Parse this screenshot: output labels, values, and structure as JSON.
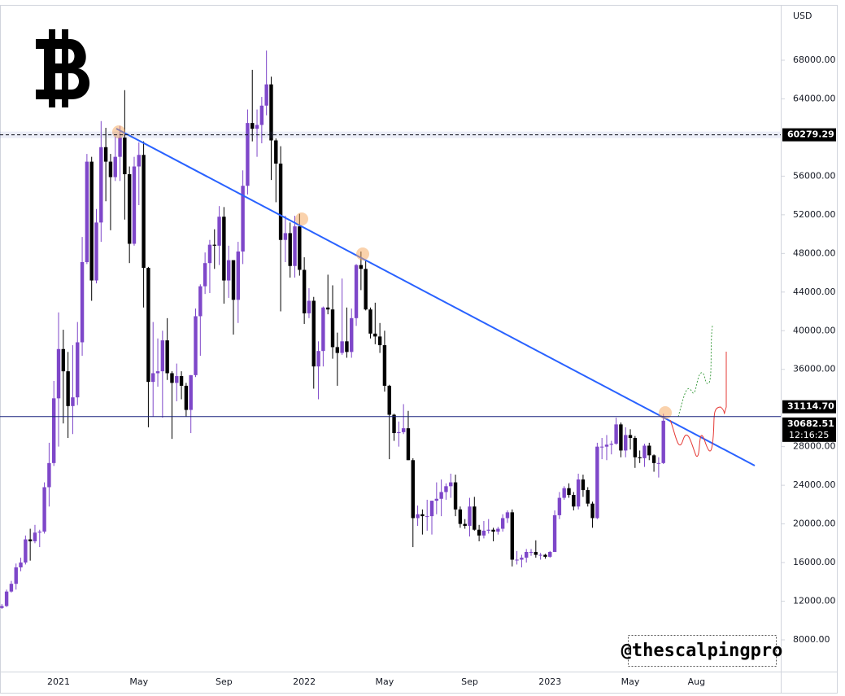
{
  "chart_data": {
    "type": "candlestick",
    "currency": "USD",
    "watermark": "@thescalpingpro",
    "categories": [
      null,
      null,
      null,
      null,
      null,
      null,
      null,
      null,
      null,
      null,
      null,
      null,
      "2021",
      null,
      null,
      null,
      null,
      null,
      null,
      null,
      null,
      null,
      null,
      null,
      null,
      null,
      null,
      null,
      null,
      "May",
      null,
      null,
      null,
      null,
      null,
      null,
      null,
      null,
      null,
      null,
      null,
      null,
      null,
      null,
      null,
      null,
      null,
      "Sep",
      null,
      null,
      null,
      null,
      null,
      null,
      null,
      null,
      null,
      null,
      null,
      null,
      null,
      null,
      null,
      null,
      "2022",
      null,
      null,
      null,
      null,
      null,
      null,
      null,
      null,
      null,
      null,
      null,
      null,
      null,
      null,
      null,
      null,
      "May",
      null,
      null,
      null,
      null,
      null,
      null,
      null,
      null,
      null,
      null,
      null,
      null,
      null,
      null,
      null,
      null,
      null,
      "Sep",
      null,
      null,
      null,
      null,
      null,
      null,
      null,
      null,
      null,
      null,
      null,
      null,
      null,
      null,
      null,
      null,
      "2023",
      null,
      null,
      null,
      null,
      null,
      null,
      null,
      null,
      null,
      null,
      null,
      null,
      null,
      null,
      null,
      null,
      "May",
      null,
      null,
      null,
      null,
      null,
      null,
      null,
      null,
      null,
      null,
      null,
      null,
      null,
      "Aug"
    ],
    "open": [
      11300,
      11500,
      13000,
      13800,
      15500,
      16000,
      18400,
      18200,
      19100,
      19200,
      23800,
      26300,
      33000,
      38100,
      35800,
      32200,
      33100,
      38800,
      47100,
      57500,
      45200,
      51200,
      59000,
      57500,
      55900,
      58000,
      60000,
      56200,
      49000,
      57000,
      58200,
      46500,
      34700,
      35600,
      35800,
      39000,
      35600,
      34600,
      35300,
      34300,
      31800,
      35400,
      41500,
      44600,
      47000,
      48900,
      48800,
      51800,
      45200,
      47300,
      43200,
      48200,
      55000,
      61500,
      60900,
      61300,
      63300,
      65500,
      59700,
      57300,
      49400,
      50100,
      46700,
      50800,
      46300,
      41800,
      43100,
      36300,
      37900,
      42400,
      42200,
      38300,
      37700,
      38900,
      37800,
      41300,
      46800,
      46400,
      42200,
      39700,
      39400,
      38500,
      34300,
      31300,
      29400,
      29500,
      29900,
      26600,
      20600,
      21000,
      20800,
      20800,
      22400,
      22600,
      23300,
      23900,
      24300,
      21500,
      20000,
      19800,
      21800,
      19400,
      18800,
      19300,
      19400,
      19200,
      19500,
      20600,
      21200,
      16300,
      16300,
      16500,
      17100,
      17100,
      16800,
      16800,
      16600,
      17100,
      20900,
      22700,
      23700,
      23000,
      21800,
      24600,
      23500,
      22100,
      20600,
      28000,
      28000,
      28200,
      28300,
      30300,
      27600,
      29200,
      28900,
      26900,
      26800,
      28100,
      27100,
      26300,
      26300,
      null,
      null,
      null,
      null,
      null,
      null,
      null
    ],
    "high": [
      11700,
      13200,
      14100,
      15900,
      16500,
      18800,
      19500,
      19900,
      19400,
      24300,
      28400,
      34800,
      41900,
      40100,
      37800,
      38500,
      40900,
      49700,
      58300,
      58000,
      52600,
      61700,
      61000,
      58300,
      60100,
      61200,
      64900,
      57000,
      58000,
      59500,
      59600,
      46600,
      40900,
      39200,
      40000,
      41300,
      35800,
      36600,
      35800,
      34600,
      35400,
      42300,
      44800,
      48100,
      49400,
      50500,
      52900,
      52800,
      48800,
      47300,
      49200,
      56600,
      62900,
      67000,
      62900,
      64200,
      69000,
      66300,
      59900,
      59100,
      51900,
      51200,
      51900,
      52100,
      47600,
      44400,
      43500,
      38900,
      42500,
      45800,
      44700,
      39800,
      45400,
      42400,
      42300,
      46900,
      48200,
      47200,
      42400,
      42900,
      40800,
      40000,
      34400,
      31400,
      30600,
      32400,
      31700,
      26800,
      21900,
      21500,
      22500,
      22400,
      24300,
      24600,
      24200,
      25200,
      25100,
      21800,
      20500,
      22700,
      22800,
      19900,
      20300,
      20500,
      19600,
      19700,
      21000,
      21400,
      21500,
      17200,
      16800,
      17400,
      17400,
      18300,
      17000,
      16900,
      17200,
      21400,
      23300,
      23900,
      24200,
      23300,
      25200,
      25100,
      23800,
      22300,
      28400,
      28900,
      29200,
      28600,
      31000,
      30500,
      30000,
      29800,
      29100,
      27600,
      28300,
      28400,
      27200,
      26900,
      31400,
      null,
      null,
      null,
      null,
      null,
      null,
      null
    ],
    "low": [
      11200,
      11400,
      12900,
      13200,
      15100,
      15800,
      16200,
      18000,
      17600,
      19000,
      21800,
      26000,
      28000,
      30400,
      28900,
      29300,
      32300,
      37400,
      46900,
      43100,
      44900,
      49200,
      53400,
      50400,
      55500,
      55500,
      51500,
      47000,
      48800,
      53000,
      42400,
      30000,
      31100,
      34200,
      31000,
      34900,
      28800,
      32700,
      32900,
      31100,
      29400,
      35200,
      37400,
      43800,
      43900,
      46400,
      46800,
      42800,
      43400,
      39600,
      40800,
      46900,
      54100,
      59600,
      58000,
      59400,
      62300,
      55600,
      53300,
      42000,
      47100,
      45500,
      45500,
      45700,
      40700,
      41300,
      34000,
      32900,
      36300,
      41700,
      37100,
      34300,
      37500,
      37200,
      37200,
      40500,
      44200,
      42100,
      39200,
      38600,
      37700,
      33700,
      26700,
      28600,
      28000,
      29300,
      26600,
      17600,
      19800,
      18900,
      19300,
      18900,
      21000,
      20800,
      22500,
      22700,
      20800,
      19600,
      19500,
      18700,
      19300,
      18200,
      18500,
      19000,
      18200,
      18900,
      19200,
      20100,
      15600,
      15800,
      15500,
      16000,
      16700,
      16500,
      16300,
      16400,
      16500,
      17100,
      20500,
      22500,
      22700,
      21400,
      21500,
      22800,
      21800,
      19600,
      20500,
      26700,
      26600,
      27200,
      28200,
      26900,
      26900,
      27700,
      25800,
      26300,
      25900,
      26600,
      25400,
      24800,
      26200,
      null,
      null,
      null,
      null,
      null,
      null,
      null
    ],
    "close": [
      11500,
      13000,
      13800,
      15500,
      16000,
      18400,
      18200,
      19100,
      19200,
      23800,
      26300,
      33000,
      38100,
      35800,
      32200,
      33100,
      38800,
      47100,
      57500,
      45200,
      51200,
      59000,
      57500,
      55900,
      58000,
      60000,
      56200,
      49000,
      57000,
      58200,
      46500,
      34700,
      35600,
      35800,
      39000,
      35600,
      34600,
      35300,
      34300,
      31800,
      35400,
      41500,
      44600,
      47000,
      48900,
      48800,
      51800,
      45200,
      47300,
      43200,
      48200,
      55000,
      61500,
      60900,
      61300,
      63300,
      65500,
      59700,
      57300,
      49400,
      50100,
      46700,
      50800,
      46300,
      41800,
      43100,
      36300,
      37900,
      42400,
      42200,
      38300,
      37700,
      38900,
      37800,
      41300,
      46800,
      46400,
      42200,
      39700,
      39400,
      38500,
      34300,
      31300,
      29400,
      29500,
      29900,
      26600,
      20600,
      21000,
      20800,
      20800,
      22400,
      22600,
      23300,
      23900,
      24300,
      21500,
      20000,
      19800,
      21800,
      19400,
      18800,
      19300,
      19400,
      19200,
      19500,
      20600,
      21200,
      16300,
      16300,
      16500,
      17100,
      17100,
      16800,
      16800,
      16600,
      17100,
      20900,
      22700,
      23700,
      23000,
      21800,
      24600,
      23500,
      22100,
      20600,
      28000,
      28000,
      28200,
      28300,
      30300,
      27600,
      29200,
      28900,
      26900,
      26800,
      28100,
      27100,
      26300,
      26300,
      30682.51,
      null,
      null,
      null,
      null,
      null,
      null,
      null
    ],
    "up_color": "#7e47c9",
    "down_color": "#000000",
    "ylim": [
      4714,
      73560
    ],
    "yticks": [
      {
        "value": 8000,
        "label": "8000.00"
      },
      {
        "value": 12000,
        "label": "12000.00"
      },
      {
        "value": 16000,
        "label": "16000.00"
      },
      {
        "value": 20000,
        "label": "20000.00"
      },
      {
        "value": 24000,
        "label": "24000.00"
      },
      {
        "value": 28000,
        "label": "28000.00"
      },
      {
        "value": 36000,
        "label": "36000.00"
      },
      {
        "value": 40000,
        "label": "40000.00"
      },
      {
        "value": 44000,
        "label": "44000.00"
      },
      {
        "value": 48000,
        "label": "48000.00"
      },
      {
        "value": 52000,
        "label": "52000.00"
      },
      {
        "value": 56000,
        "label": "56000.00"
      },
      {
        "value": 64000,
        "label": "64000.00"
      },
      {
        "value": 68000,
        "label": "68000.00"
      }
    ],
    "price_lines": [
      60279.29,
      {
        "value": 31114.7,
        "label": "31114.70"
      }
    ],
    "last_price": 30682.51,
    "countdown": "12:16:25"
  }
}
